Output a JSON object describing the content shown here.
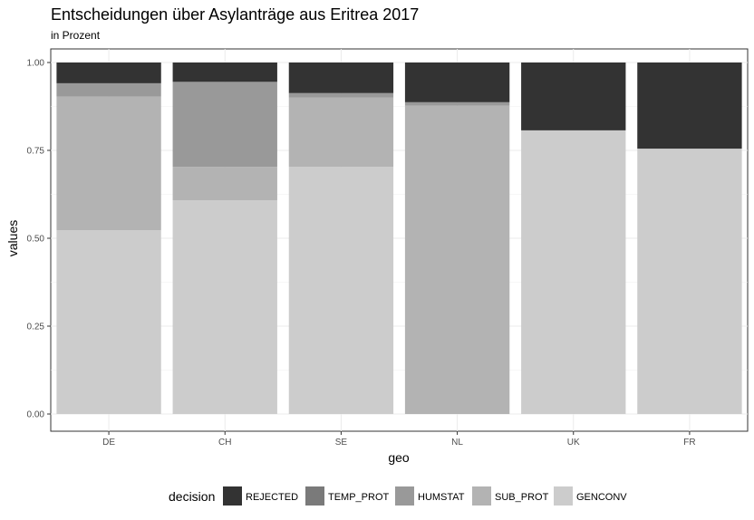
{
  "chart_data": {
    "type": "bar",
    "stacked": true,
    "normalized": true,
    "title": "Entscheidungen über Asylanträge aus  Eritrea  2017",
    "subtitle": "in Prozent",
    "xlabel": "geo",
    "ylabel": "values",
    "ylim": [
      0,
      1
    ],
    "yticks": [
      "0.00",
      "0.25",
      "0.50",
      "0.75",
      "1.00"
    ],
    "categories": [
      "DE",
      "CH",
      "SE",
      "NL",
      "UK",
      "FR"
    ],
    "grid": true,
    "legend": {
      "title": "decision",
      "position": "bottom"
    },
    "series": [
      {
        "name": "GENCONV",
        "color": "#cccccc",
        "values": [
          0.523,
          0.608,
          0.703,
          0.0,
          0.807,
          0.755
        ]
      },
      {
        "name": "SUB_PROT",
        "color": "#b3b3b3",
        "values": [
          0.38,
          0.095,
          0.197,
          0.877,
          0.0,
          0.0
        ]
      },
      {
        "name": "HUMSTAT",
        "color": "#999999",
        "values": [
          0.038,
          0.242,
          0.013,
          0.01,
          0.0,
          0.0
        ]
      },
      {
        "name": "TEMP_PROT",
        "color": "#7a7a7a",
        "values": [
          0.0,
          0.0,
          0.0,
          0.0,
          0.0,
          0.0
        ]
      },
      {
        "name": "REJECTED",
        "color": "#333333",
        "values": [
          0.059,
          0.055,
          0.087,
          0.113,
          0.193,
          0.245
        ]
      }
    ],
    "legend_order": [
      "REJECTED",
      "TEMP_PROT",
      "HUMSTAT",
      "SUB_PROT",
      "GENCONV"
    ]
  }
}
